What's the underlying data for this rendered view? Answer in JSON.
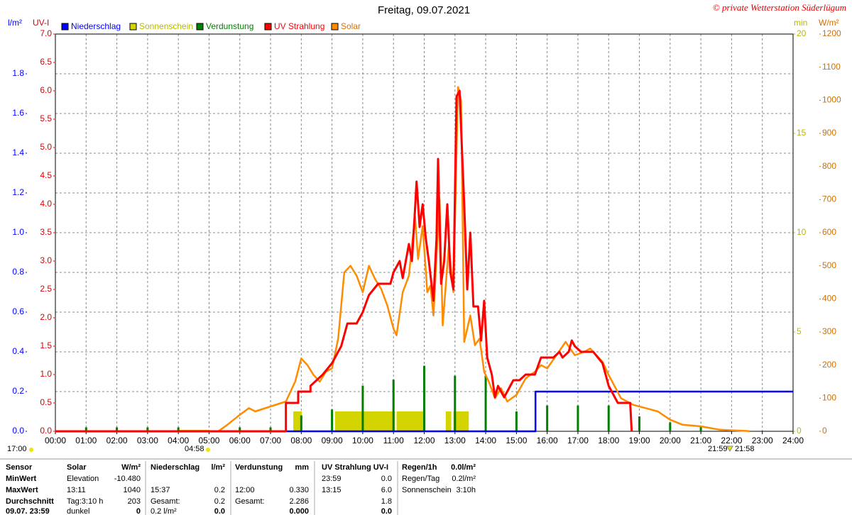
{
  "chart_data": {
    "type": "line",
    "title": "Freitag, 09.07.2021",
    "credit": "© private Wetterstation Süderlügum",
    "ylabel": "UV-I",
    "y2label": "W/m²",
    "y3label": "l/m²",
    "y4label": "min",
    "xlim": [
      0,
      24
    ],
    "xticks": [
      {
        "value": 0,
        "label": "00:00"
      },
      {
        "value": 1,
        "label": "01:00"
      },
      {
        "value": 2,
        "label": "02:00"
      },
      {
        "value": 3,
        "label": "03:00"
      },
      {
        "value": 4,
        "label": "04:00"
      },
      {
        "value": 5,
        "label": "05:00"
      },
      {
        "value": 6,
        "label": "06:00"
      },
      {
        "value": 7,
        "label": "07:00"
      },
      {
        "value": 8,
        "label": "08:00"
      },
      {
        "value": 9,
        "label": "09:00"
      },
      {
        "value": 10,
        "label": "10:00"
      },
      {
        "value": 11,
        "label": "11:00"
      },
      {
        "value": 12,
        "label": "12:00"
      },
      {
        "value": 13,
        "label": "13:00"
      },
      {
        "value": 14,
        "label": "14:00"
      },
      {
        "value": 15,
        "label": "15:00"
      },
      {
        "value": 16,
        "label": "16:00"
      },
      {
        "value": 17,
        "label": "17:00"
      },
      {
        "value": 18,
        "label": "18:00"
      },
      {
        "value": 19,
        "label": "19:00"
      },
      {
        "value": 20,
        "label": "20:00"
      },
      {
        "value": 21,
        "label": "21:00"
      },
      {
        "value": 22,
        "label": "22:00"
      },
      {
        "value": 23,
        "label": "23:00"
      },
      {
        "value": 24,
        "label": "24:00"
      }
    ],
    "ylim": [
      0,
      7
    ],
    "yticks": [
      {
        "value": 0,
        "label": "0.0"
      },
      0.5,
      {
        "value": 1,
        "label": "1.0"
      },
      1.5,
      {
        "value": 2,
        "label": "2.0"
      },
      2.5,
      {
        "value": 3,
        "label": "3.0"
      },
      3.5,
      {
        "value": 4,
        "label": "4.0"
      },
      4.5,
      {
        "value": 5,
        "label": "5.0"
      },
      5.5,
      {
        "value": 6,
        "label": "6.0"
      },
      6.5,
      {
        "value": 7,
        "label": "7.0"
      }
    ],
    "y2lim": [
      0,
      1200
    ],
    "y2ticks": [
      0,
      100,
      200,
      300,
      400,
      500,
      600,
      700,
      800,
      900,
      1000,
      1100,
      1200
    ],
    "y3lim": [
      0,
      2
    ],
    "y3ticks": [
      {
        "value": 0,
        "label": "0.0"
      },
      0.2,
      0.4,
      0.6,
      0.8,
      {
        "value": 1,
        "label": "1.0"
      },
      1.2,
      1.4,
      1.6,
      1.8
    ],
    "y4lim": [
      0,
      20
    ],
    "y4ticks": [
      0,
      5,
      10,
      15,
      20
    ],
    "grid": true,
    "annotations": [
      "17:00",
      "04:58",
      "21:59",
      "21:58"
    ],
    "series": [
      {
        "name": "Niederschlag",
        "color": "#0000ff",
        "axis": "y3",
        "kind": "line",
        "x": [
          0,
          15.62,
          15.62,
          24
        ],
        "values": [
          0,
          0,
          0.2,
          0.2
        ]
      },
      {
        "name": "Sonnenschein",
        "color": "#d4d400",
        "axis": "y4",
        "kind": "span",
        "x": [
          4.0,
          7.74,
          9.1,
          11.1,
          12.7,
          12.95
        ],
        "x_end": [
          5.0,
          8.02,
          11.05,
          12.0,
          12.88,
          13.45
        ],
        "values": [
          0.05,
          1,
          1,
          1,
          1,
          1
        ]
      },
      {
        "name": "Verdunstung",
        "color": "#007f00",
        "axis": "y3",
        "kind": "spike",
        "x": [
          1,
          2,
          3,
          4,
          6,
          7,
          8,
          9,
          10,
          11,
          12,
          13,
          14,
          15,
          16,
          17,
          18,
          19,
          20,
          21
        ],
        "values": [
          0.02,
          0.02,
          0.02,
          0.02,
          0.02,
          0.02,
          0.08,
          0.11,
          0.23,
          0.26,
          0.33,
          0.28,
          0.28,
          0.1,
          0.13,
          0.13,
          0.13,
          0.075,
          0.045,
          0.025
        ]
      },
      {
        "name": "UV Strahlung",
        "color": "#ff0000",
        "axis": "y",
        "kind": "line",
        "x": [
          0,
          7.5,
          7.5,
          7.9,
          7.9,
          8.3,
          8.3,
          8.7,
          9.0,
          9.3,
          9.5,
          9.8,
          10.0,
          10.2,
          10.5,
          10.9,
          11.0,
          11.2,
          11.3,
          11.5,
          11.6,
          11.7,
          11.75,
          11.85,
          11.95,
          12.05,
          12.15,
          12.3,
          12.4,
          12.45,
          12.55,
          12.65,
          12.75,
          12.85,
          12.95,
          13.05,
          13.15,
          13.3,
          13.4,
          13.5,
          13.6,
          13.75,
          13.85,
          13.95,
          14.05,
          14.2,
          14.3,
          14.4,
          14.6,
          14.8,
          14.9,
          15.1,
          15.3,
          15.6,
          15.8,
          16.0,
          16.2,
          16.4,
          16.5,
          16.7,
          16.8,
          16.9,
          17.1,
          17.5,
          17.8,
          18.0,
          18.3,
          18.7,
          18.75
        ],
        "values": [
          0,
          0,
          0.5,
          0.5,
          0.7,
          0.7,
          0.8,
          1.0,
          1.2,
          1.5,
          1.9,
          1.9,
          2.1,
          2.4,
          2.6,
          2.6,
          2.8,
          3.0,
          2.7,
          3.3,
          3.0,
          3.9,
          4.4,
          3.6,
          4.0,
          3.4,
          3.0,
          2.3,
          3.4,
          4.8,
          2.6,
          3.0,
          4.0,
          2.8,
          2.5,
          5.9,
          6.0,
          4.0,
          2.5,
          3.5,
          2.2,
          2.2,
          1.6,
          2.3,
          1.3,
          1.0,
          0.6,
          0.8,
          0.6,
          0.8,
          0.9,
          0.9,
          1.0,
          1.0,
          1.3,
          1.3,
          1.3,
          1.4,
          1.3,
          1.4,
          1.6,
          1.5,
          1.4,
          1.4,
          1.2,
          0.8,
          0.5,
          0.5,
          0
        ]
      },
      {
        "name": "Solar",
        "color": "#ff8c00",
        "axis": "y2",
        "kind": "line",
        "x": [
          0,
          5.3,
          5.6,
          6.0,
          6.3,
          6.5,
          7.0,
          7.5,
          7.8,
          8.0,
          8.2,
          8.4,
          8.6,
          8.8,
          9.0,
          9.2,
          9.4,
          9.6,
          9.8,
          10.0,
          10.2,
          10.4,
          10.6,
          10.8,
          11.0,
          11.1,
          11.3,
          11.5,
          11.7,
          11.8,
          11.95,
          12.1,
          12.2,
          12.3,
          12.5,
          12.6,
          12.8,
          12.95,
          13.1,
          13.2,
          13.3,
          13.5,
          13.65,
          13.8,
          13.95,
          14.1,
          14.3,
          14.5,
          14.7,
          15.0,
          15.3,
          15.6,
          15.8,
          16.0,
          16.3,
          16.6,
          16.9,
          17.2,
          17.4,
          17.6,
          17.8,
          18.0,
          18.4,
          18.8,
          19.2,
          19.6,
          20.0,
          20.4,
          21.0,
          21.6,
          22.0,
          22.5,
          22.6
        ],
        "values": [
          0,
          0,
          20,
          50,
          70,
          60,
          75,
          90,
          150,
          220,
          200,
          170,
          150,
          180,
          190,
          280,
          480,
          500,
          470,
          420,
          500,
          460,
          430,
          380,
          310,
          290,
          420,
          470,
          650,
          520,
          620,
          420,
          440,
          350,
          700,
          320,
          560,
          420,
          1040,
          1000,
          270,
          350,
          260,
          280,
          180,
          150,
          100,
          130,
          90,
          110,
          160,
          180,
          200,
          190,
          230,
          270,
          230,
          240,
          250,
          230,
          210,
          170,
          100,
          80,
          70,
          60,
          35,
          20,
          15,
          5,
          3,
          1,
          0
        ]
      }
    ]
  },
  "table": {
    "rows": [
      [
        "Sensor",
        "Solar",
        "W/m²",
        "Niederschlag",
        "l/m²",
        "Verdunstung",
        "mm",
        "UV Strahlung UV-I",
        null,
        "Regen/1h",
        "0.0l/m²"
      ],
      [
        "MinWert",
        "Elevation",
        "-10.480",
        null,
        null,
        null,
        null,
        "23:59",
        "0.0",
        "Regen/Tag",
        "0.2l/m²"
      ],
      [
        "MaxWert",
        "13:11",
        "1040",
        "15:37",
        "0.2",
        "12:00",
        "0.330",
        "13:15",
        "6.0",
        "Sonnenschein",
        "3:10h"
      ],
      [
        "Durchschnitt",
        "Tag:3:10 h",
        "203",
        "Gesamt:",
        "0.2",
        "Gesamt:",
        "2.286",
        null,
        "1.8",
        null,
        null
      ],
      [
        "09.07. 23:59",
        "dunkel",
        "0",
        "0.2 l/m²",
        "0.0",
        null,
        "0.000",
        null,
        "0.0",
        null,
        null
      ]
    ]
  }
}
